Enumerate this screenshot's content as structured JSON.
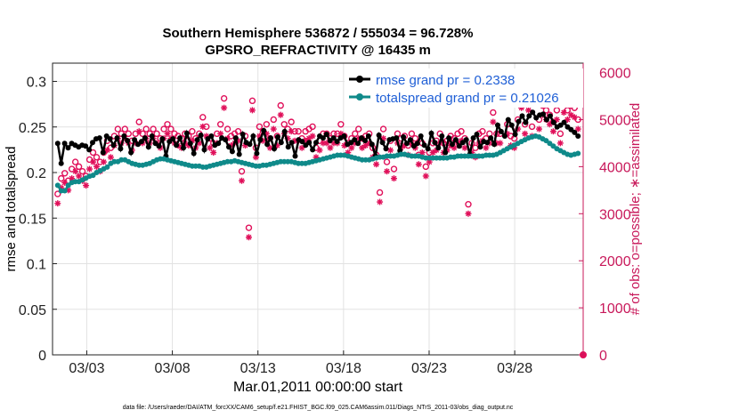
{
  "chart_data": {
    "type": "line",
    "title": [
      "Southern Hemisphere 536872 / 555034 = 96.728%",
      "GPSRO_REFRACTIVITY @ 16435 m"
    ],
    "xlabel": "Mar.01,2011 00:00:00 start",
    "ylabel": "rmse and totalspread",
    "y2label": "# of obs: o=possible; ∗=assimilated",
    "footer": "data file: /Users/raeder/DAI/ATM_forcXX/CAM6_setup/f.e21.FHIST_BGC.f09_025.CAM6assim.011/Diags_NTrS_2011-03/obs_diag_output.nc",
    "xlim": [
      1.0,
      32.0
    ],
    "ylim": [
      0,
      0.32
    ],
    "y2lim": [
      0,
      6200
    ],
    "xtick_values": [
      3,
      8,
      13,
      18,
      23,
      28
    ],
    "xtick_labels": [
      "03/03",
      "03/08",
      "03/13",
      "03/18",
      "03/23",
      "03/28"
    ],
    "ytick_labels": [
      "0",
      "0.05",
      "0.1",
      "0.15",
      "0.2",
      "0.25",
      "0.3"
    ],
    "y2tick_labels": [
      "0",
      "1000",
      "2000",
      "3000",
      "4000",
      "5000",
      "6000"
    ],
    "grid": true,
    "legend": "top-right",
    "colors": {
      "rmse": "#000000",
      "spread": "#0f8a8a",
      "obs": "#e0105a",
      "axis2": "#c8185a",
      "legend_text": "#1f5fd6"
    },
    "series": [
      {
        "name": "rmse grand pr = 0.2338",
        "marker": "filled-circle",
        "values": [
          0.232,
          0.21,
          0.232,
          0.227,
          0.232,
          0.23,
          0.228,
          0.23,
          0.229,
          0.225,
          0.233,
          0.237,
          0.238,
          0.222,
          0.24,
          0.237,
          0.23,
          0.238,
          0.226,
          0.24,
          0.235,
          0.222,
          0.236,
          0.231,
          0.234,
          0.238,
          0.228,
          0.24,
          0.232,
          0.229,
          0.237,
          0.218,
          0.234,
          0.237,
          0.23,
          0.238,
          0.227,
          0.243,
          0.232,
          0.221,
          0.236,
          0.241,
          0.225,
          0.237,
          0.24,
          0.23,
          0.232,
          0.238,
          0.236,
          0.228,
          0.223,
          0.238,
          0.22,
          0.242,
          0.233,
          0.231,
          0.24,
          0.221,
          0.236,
          0.246,
          0.231,
          0.238,
          0.226,
          0.239,
          0.233,
          0.245,
          0.228,
          0.233,
          0.218,
          0.236,
          0.234,
          0.23,
          0.233,
          0.225,
          0.233,
          0.24,
          0.238,
          0.242,
          0.235,
          0.238,
          0.234,
          0.238,
          0.24,
          0.231,
          0.233,
          0.236,
          0.232,
          0.238,
          0.235,
          0.24,
          0.231,
          0.218,
          0.241,
          0.233,
          0.226,
          0.236,
          0.237,
          0.238,
          0.224,
          0.239,
          0.232,
          0.236,
          0.229,
          0.232,
          0.24,
          0.23,
          0.226,
          0.243,
          0.233,
          0.227,
          0.24,
          0.222,
          0.238,
          0.231,
          0.236,
          0.229,
          0.233,
          0.236,
          0.22,
          0.238,
          0.242,
          0.228,
          0.234,
          0.233,
          0.238,
          0.231,
          0.252,
          0.245,
          0.24,
          0.258,
          0.252,
          0.242,
          0.256,
          0.262,
          0.255,
          0.262,
          0.266,
          0.26,
          0.263,
          0.264,
          0.258,
          0.262,
          0.255,
          0.25,
          0.252,
          0.255,
          0.25,
          0.247,
          0.244,
          0.24
        ]
      },
      {
        "name": "totalspread grand pr = 0.21026",
        "marker": "filled-circle",
        "values": [
          0.186,
          0.18,
          0.18,
          0.186,
          0.189,
          0.19,
          0.19,
          0.192,
          0.194,
          0.196,
          0.197,
          0.2,
          0.202,
          0.204,
          0.206,
          0.21,
          0.212,
          0.212,
          0.214,
          0.214,
          0.212,
          0.21,
          0.209,
          0.208,
          0.208,
          0.209,
          0.21,
          0.212,
          0.214,
          0.215,
          0.215,
          0.214,
          0.213,
          0.212,
          0.211,
          0.21,
          0.209,
          0.208,
          0.207,
          0.207,
          0.207,
          0.206,
          0.206,
          0.207,
          0.208,
          0.209,
          0.21,
          0.211,
          0.212,
          0.212,
          0.213,
          0.212,
          0.211,
          0.21,
          0.209,
          0.208,
          0.207,
          0.207,
          0.208,
          0.208,
          0.209,
          0.21,
          0.211,
          0.212,
          0.212,
          0.212,
          0.212,
          0.211,
          0.21,
          0.21,
          0.21,
          0.211,
          0.212,
          0.213,
          0.214,
          0.215,
          0.216,
          0.217,
          0.218,
          0.219,
          0.219,
          0.219,
          0.218,
          0.217,
          0.216,
          0.215,
          0.214,
          0.214,
          0.214,
          0.215,
          0.216,
          0.217,
          0.217,
          0.218,
          0.218,
          0.218,
          0.219,
          0.22,
          0.22,
          0.219,
          0.218,
          0.218,
          0.218,
          0.217,
          0.216,
          0.216,
          0.216,
          0.216,
          0.216,
          0.216,
          0.216,
          0.217,
          0.217,
          0.218,
          0.218,
          0.218,
          0.218,
          0.218,
          0.218,
          0.218,
          0.218,
          0.219,
          0.219,
          0.219,
          0.22,
          0.222,
          0.224,
          0.226,
          0.228,
          0.23,
          0.232,
          0.234,
          0.236,
          0.238,
          0.239,
          0.24,
          0.239,
          0.237,
          0.235,
          0.232,
          0.229,
          0.226,
          0.224,
          0.222,
          0.22,
          0.219,
          0.22,
          0.221
        ]
      }
    ],
    "obs_possible": [
      3420,
      3750,
      3860,
      3700,
      3950,
      4100,
      4000,
      3900,
      3800,
      4150,
      4300,
      4200,
      4100,
      4300,
      4550,
      4400,
      4650,
      4800,
      4700,
      4800,
      4700,
      4550,
      4700,
      4950,
      4700,
      4800,
      4700,
      4800,
      4700,
      4600,
      4800,
      4900,
      4800,
      4700,
      4650,
      4600,
      4700,
      4650,
      4750,
      4600,
      4700,
      5050,
      4850,
      4600,
      4500,
      4700,
      4900,
      5450,
      4800,
      4650,
      4700,
      4750,
      3900,
      4650,
      2700,
      5400,
      4400,
      4850,
      4750,
      4900,
      4600,
      5000,
      4650,
      5300,
      4900,
      4800,
      4950,
      4750,
      4750,
      4600,
      4750,
      4800,
      4850,
      4400,
      4550,
      4700,
      4700,
      4600,
      4700,
      4700,
      4900,
      4650,
      4500,
      4600,
      4700,
      4800,
      4600,
      4650,
      4700,
      4400,
      4250,
      3450,
      4800,
      4100,
      4550,
      3950,
      4700,
      4600,
      4650,
      4450,
      4700,
      4600,
      4250,
      4500,
      4000,
      4300,
      4500,
      4550,
      4700,
      4500,
      4550,
      4650,
      4600,
      4700,
      4750,
      4600,
      3200,
      4500,
      4400,
      4700,
      4750,
      4600,
      4700,
      5150,
      4700,
      4700,
      5700,
      4900,
      4650,
      4600,
      5000,
      5450,
      4900,
      5400,
      4850,
      5850,
      5000,
      5300,
      5200,
      5100,
      4950,
      5200,
      4700,
      5350,
      5200,
      5300,
      5250,
      5000
    ]
  }
}
